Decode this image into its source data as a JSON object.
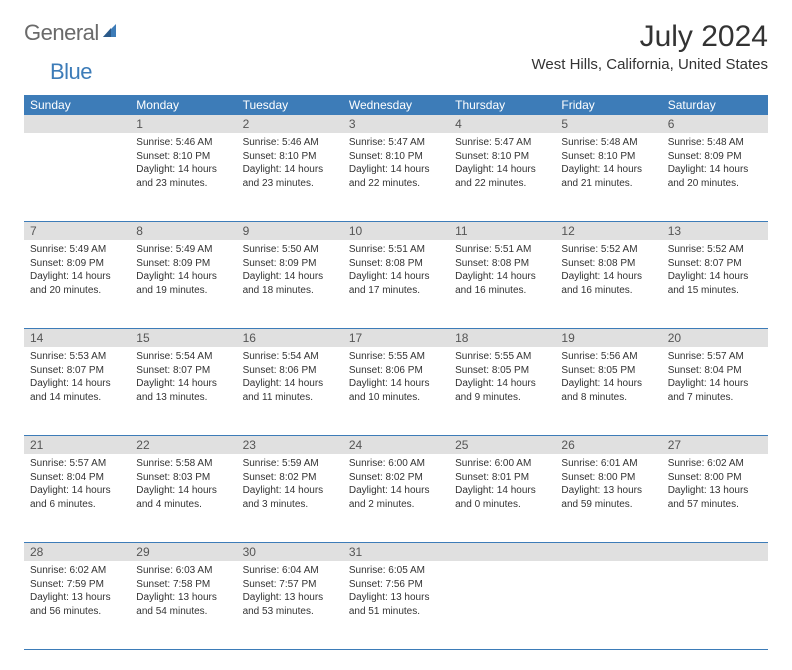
{
  "logo": {
    "text_gray": "General",
    "text_blue": "Blue",
    "color_gray": "#6a6a6a",
    "color_blue": "#3d7cb8"
  },
  "header": {
    "title": "July 2024",
    "location": "West Hills, California, United States"
  },
  "colors": {
    "header_bg": "#3d7cb8",
    "header_text": "#ffffff",
    "daynum_bg": "#e0e0e0",
    "border": "#3d7cb8",
    "text": "#333333"
  },
  "day_names": [
    "Sunday",
    "Monday",
    "Tuesday",
    "Wednesday",
    "Thursday",
    "Friday",
    "Saturday"
  ],
  "weeks": [
    {
      "nums": [
        "",
        "1",
        "2",
        "3",
        "4",
        "5",
        "6"
      ],
      "cells": [
        {
          "sunrise": "",
          "sunset": "",
          "day1": "",
          "day2": ""
        },
        {
          "sunrise": "Sunrise: 5:46 AM",
          "sunset": "Sunset: 8:10 PM",
          "day1": "Daylight: 14 hours",
          "day2": "and 23 minutes."
        },
        {
          "sunrise": "Sunrise: 5:46 AM",
          "sunset": "Sunset: 8:10 PM",
          "day1": "Daylight: 14 hours",
          "day2": "and 23 minutes."
        },
        {
          "sunrise": "Sunrise: 5:47 AM",
          "sunset": "Sunset: 8:10 PM",
          "day1": "Daylight: 14 hours",
          "day2": "and 22 minutes."
        },
        {
          "sunrise": "Sunrise: 5:47 AM",
          "sunset": "Sunset: 8:10 PM",
          "day1": "Daylight: 14 hours",
          "day2": "and 22 minutes."
        },
        {
          "sunrise": "Sunrise: 5:48 AM",
          "sunset": "Sunset: 8:10 PM",
          "day1": "Daylight: 14 hours",
          "day2": "and 21 minutes."
        },
        {
          "sunrise": "Sunrise: 5:48 AM",
          "sunset": "Sunset: 8:09 PM",
          "day1": "Daylight: 14 hours",
          "day2": "and 20 minutes."
        }
      ]
    },
    {
      "nums": [
        "7",
        "8",
        "9",
        "10",
        "11",
        "12",
        "13"
      ],
      "cells": [
        {
          "sunrise": "Sunrise: 5:49 AM",
          "sunset": "Sunset: 8:09 PM",
          "day1": "Daylight: 14 hours",
          "day2": "and 20 minutes."
        },
        {
          "sunrise": "Sunrise: 5:49 AM",
          "sunset": "Sunset: 8:09 PM",
          "day1": "Daylight: 14 hours",
          "day2": "and 19 minutes."
        },
        {
          "sunrise": "Sunrise: 5:50 AM",
          "sunset": "Sunset: 8:09 PM",
          "day1": "Daylight: 14 hours",
          "day2": "and 18 minutes."
        },
        {
          "sunrise": "Sunrise: 5:51 AM",
          "sunset": "Sunset: 8:08 PM",
          "day1": "Daylight: 14 hours",
          "day2": "and 17 minutes."
        },
        {
          "sunrise": "Sunrise: 5:51 AM",
          "sunset": "Sunset: 8:08 PM",
          "day1": "Daylight: 14 hours",
          "day2": "and 16 minutes."
        },
        {
          "sunrise": "Sunrise: 5:52 AM",
          "sunset": "Sunset: 8:08 PM",
          "day1": "Daylight: 14 hours",
          "day2": "and 16 minutes."
        },
        {
          "sunrise": "Sunrise: 5:52 AM",
          "sunset": "Sunset: 8:07 PM",
          "day1": "Daylight: 14 hours",
          "day2": "and 15 minutes."
        }
      ]
    },
    {
      "nums": [
        "14",
        "15",
        "16",
        "17",
        "18",
        "19",
        "20"
      ],
      "cells": [
        {
          "sunrise": "Sunrise: 5:53 AM",
          "sunset": "Sunset: 8:07 PM",
          "day1": "Daylight: 14 hours",
          "day2": "and 14 minutes."
        },
        {
          "sunrise": "Sunrise: 5:54 AM",
          "sunset": "Sunset: 8:07 PM",
          "day1": "Daylight: 14 hours",
          "day2": "and 13 minutes."
        },
        {
          "sunrise": "Sunrise: 5:54 AM",
          "sunset": "Sunset: 8:06 PM",
          "day1": "Daylight: 14 hours",
          "day2": "and 11 minutes."
        },
        {
          "sunrise": "Sunrise: 5:55 AM",
          "sunset": "Sunset: 8:06 PM",
          "day1": "Daylight: 14 hours",
          "day2": "and 10 minutes."
        },
        {
          "sunrise": "Sunrise: 5:55 AM",
          "sunset": "Sunset: 8:05 PM",
          "day1": "Daylight: 14 hours",
          "day2": "and 9 minutes."
        },
        {
          "sunrise": "Sunrise: 5:56 AM",
          "sunset": "Sunset: 8:05 PM",
          "day1": "Daylight: 14 hours",
          "day2": "and 8 minutes."
        },
        {
          "sunrise": "Sunrise: 5:57 AM",
          "sunset": "Sunset: 8:04 PM",
          "day1": "Daylight: 14 hours",
          "day2": "and 7 minutes."
        }
      ]
    },
    {
      "nums": [
        "21",
        "22",
        "23",
        "24",
        "25",
        "26",
        "27"
      ],
      "cells": [
        {
          "sunrise": "Sunrise: 5:57 AM",
          "sunset": "Sunset: 8:04 PM",
          "day1": "Daylight: 14 hours",
          "day2": "and 6 minutes."
        },
        {
          "sunrise": "Sunrise: 5:58 AM",
          "sunset": "Sunset: 8:03 PM",
          "day1": "Daylight: 14 hours",
          "day2": "and 4 minutes."
        },
        {
          "sunrise": "Sunrise: 5:59 AM",
          "sunset": "Sunset: 8:02 PM",
          "day1": "Daylight: 14 hours",
          "day2": "and 3 minutes."
        },
        {
          "sunrise": "Sunrise: 6:00 AM",
          "sunset": "Sunset: 8:02 PM",
          "day1": "Daylight: 14 hours",
          "day2": "and 2 minutes."
        },
        {
          "sunrise": "Sunrise: 6:00 AM",
          "sunset": "Sunset: 8:01 PM",
          "day1": "Daylight: 14 hours",
          "day2": "and 0 minutes."
        },
        {
          "sunrise": "Sunrise: 6:01 AM",
          "sunset": "Sunset: 8:00 PM",
          "day1": "Daylight: 13 hours",
          "day2": "and 59 minutes."
        },
        {
          "sunrise": "Sunrise: 6:02 AM",
          "sunset": "Sunset: 8:00 PM",
          "day1": "Daylight: 13 hours",
          "day2": "and 57 minutes."
        }
      ]
    },
    {
      "nums": [
        "28",
        "29",
        "30",
        "31",
        "",
        "",
        ""
      ],
      "cells": [
        {
          "sunrise": "Sunrise: 6:02 AM",
          "sunset": "Sunset: 7:59 PM",
          "day1": "Daylight: 13 hours",
          "day2": "and 56 minutes."
        },
        {
          "sunrise": "Sunrise: 6:03 AM",
          "sunset": "Sunset: 7:58 PM",
          "day1": "Daylight: 13 hours",
          "day2": "and 54 minutes."
        },
        {
          "sunrise": "Sunrise: 6:04 AM",
          "sunset": "Sunset: 7:57 PM",
          "day1": "Daylight: 13 hours",
          "day2": "and 53 minutes."
        },
        {
          "sunrise": "Sunrise: 6:05 AM",
          "sunset": "Sunset: 7:56 PM",
          "day1": "Daylight: 13 hours",
          "day2": "and 51 minutes."
        },
        {
          "sunrise": "",
          "sunset": "",
          "day1": "",
          "day2": ""
        },
        {
          "sunrise": "",
          "sunset": "",
          "day1": "",
          "day2": ""
        },
        {
          "sunrise": "",
          "sunset": "",
          "day1": "",
          "day2": ""
        }
      ]
    }
  ]
}
